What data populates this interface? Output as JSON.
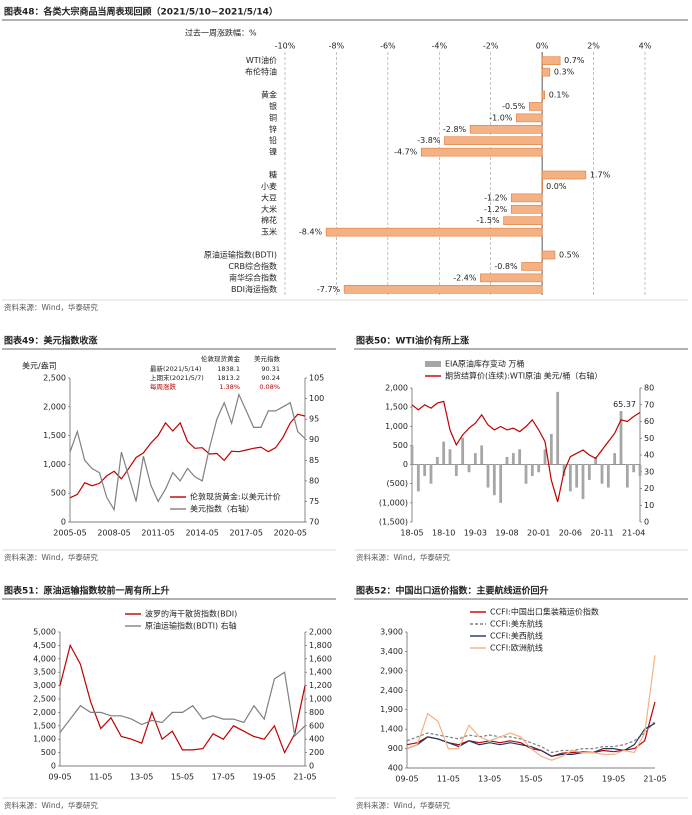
{
  "chart_data": [
    {
      "type": "hbar",
      "title": "图表48：各类大宗商品当周表现回顾（2021/5/10~2021/5/14）",
      "subtitle": "过去一周涨跌幅：%",
      "categories": [
        "WTI油价",
        "布伦特油",
        null,
        "黄金",
        "银",
        "铜",
        "锌",
        "铅",
        "镍",
        null,
        "糖",
        "小麦",
        "大豆",
        "大米",
        "棉花",
        "玉米",
        null,
        "原油运输指数(BDTI)",
        "CRB综合指数",
        "南华综合指数",
        "BDI海运指数"
      ],
      "values": [
        0.7,
        0.3,
        null,
        0.1,
        -0.5,
        -1.0,
        -2.8,
        -3.8,
        -4.7,
        null,
        1.7,
        0.0,
        -1.2,
        -1.2,
        -1.5,
        -8.4,
        null,
        0.5,
        -0.8,
        -2.4,
        -7.7
      ],
      "value_labels": [
        "0.7%",
        "0.3%",
        null,
        "0.1%",
        "-0.5%",
        "-1.0%",
        "-2.8%",
        "-3.8%",
        "-4.7%",
        null,
        "1.7%",
        "0.0%",
        "-1.2%",
        "-1.2%",
        "-1.5%",
        "-8.4%",
        null,
        "0.5%",
        "-0.8%",
        "-2.4%",
        "-7.7%"
      ],
      "color": "#f4b183",
      "xlim": [
        -10,
        4
      ],
      "xticks": [
        {
          "value": -10,
          "label": "-10%"
        },
        {
          "value": -8,
          "label": "-8%"
        },
        {
          "value": -6,
          "label": "-6%"
        },
        {
          "value": -4,
          "label": "-4%"
        },
        {
          "value": -2,
          "label": "-2%"
        },
        {
          "value": 0,
          "label": "0%"
        },
        {
          "value": 2,
          "label": "2%"
        },
        {
          "value": 4,
          "label": "4%"
        }
      ],
      "grid": true,
      "source": "资料来源：Wind，华泰研究"
    },
    {
      "type": "line",
      "title": "图表49：美元指数收涨",
      "y_label": "美元/盎司",
      "x": [
        "2005-05",
        "2005-11",
        "2006-05",
        "2006-11",
        "2007-05",
        "2007-11",
        "2008-05",
        "2008-11",
        "2009-05",
        "2009-11",
        "2010-05",
        "2010-11",
        "2011-05",
        "2011-11",
        "2012-05",
        "2012-11",
        "2013-05",
        "2013-11",
        "2014-05",
        "2014-11",
        "2015-05",
        "2015-11",
        "2016-05",
        "2016-11",
        "2017-05",
        "2017-11",
        "2018-05",
        "2018-11",
        "2019-05",
        "2019-11",
        "2020-05",
        "2020-11",
        "2021-05"
      ],
      "series": [
        {
          "name": "伦敦现货黄金:以美元计价",
          "color": "#c00000",
          "values": [
            420,
            480,
            680,
            630,
            670,
            800,
            880,
            750,
            930,
            1120,
            1200,
            1370,
            1500,
            1720,
            1580,
            1720,
            1400,
            1280,
            1290,
            1180,
            1190,
            1070,
            1230,
            1220,
            1250,
            1280,
            1300,
            1220,
            1290,
            1470,
            1720,
            1870,
            1838
          ]
        },
        {
          "name": "美元指数（右轴）",
          "color": "#808080",
          "axis": "y2",
          "values": [
            87,
            92,
            85,
            83,
            82,
            76,
            73,
            87,
            81,
            75,
            86,
            79,
            75,
            78,
            82,
            80,
            83,
            81,
            80,
            88,
            95,
            99,
            94,
            101,
            97,
            93,
            93,
            97,
            97,
            98,
            99,
            92,
            90.3
          ]
        }
      ],
      "ylim": [
        0,
        2500
      ],
      "yticks": [
        0,
        500,
        {
          "value": 1000,
          "label": "1,000"
        },
        {
          "value": 1500,
          "label": "1,500"
        },
        {
          "value": 2000,
          "label": "2,000"
        },
        {
          "value": 2500,
          "label": "2,500"
        }
      ],
      "y2lim": [
        70,
        105
      ],
      "y2ticks": [
        70,
        75,
        80,
        85,
        90,
        95,
        100,
        105
      ],
      "xticks": [
        "2005-05",
        "2008-05",
        "2011-05",
        "2014-05",
        "2017-05",
        "2020-05"
      ],
      "legend": "lower right",
      "annotation_table": {
        "header": [
          "伦敦现货黄金",
          "美元指数"
        ],
        "rows": [
          [
            "最新(2021/5/14)",
            "1838.1",
            "90.31"
          ],
          [
            "上期末(2021/5/7)",
            "1813.2",
            "90.24"
          ],
          [
            "每周涨跌",
            "1.38%",
            "0.08%"
          ]
        ]
      },
      "source": "资料来源：Wind，华泰研究"
    },
    {
      "type": "combo",
      "title": "图表50：WTI油价有所上涨",
      "x": [
        "18-05",
        "18-06",
        "18-07",
        "18-08",
        "18-09",
        "18-10",
        "18-11",
        "18-12",
        "19-01",
        "19-02",
        "19-03",
        "19-04",
        "19-05",
        "19-06",
        "19-07",
        "19-08",
        "19-09",
        "19-10",
        "19-11",
        "19-12",
        "20-01",
        "20-02",
        "20-03",
        "20-04",
        "20-05",
        "20-06",
        "20-07",
        "20-08",
        "20-09",
        "20-10",
        "20-11",
        "20-12",
        "21-01",
        "21-02",
        "21-03",
        "21-04",
        "21-05"
      ],
      "series": [
        {
          "name": "EIA原油库存变动 万桶",
          "kind": "bar",
          "color": "#a6a6a6",
          "values": [
            500,
            -700,
            -300,
            -500,
            200,
            600,
            400,
            -300,
            700,
            -200,
            300,
            500,
            -600,
            -800,
            -1000,
            200,
            300,
            400,
            -500,
            -300,
            -200,
            400,
            800,
            1900,
            -300,
            -700,
            -600,
            -900,
            -400,
            200,
            -500,
            -600,
            300,
            1400,
            -600,
            -200,
            -300
          ]
        },
        {
          "name": "期货结算价(连续):WTI原油 美元/桶（右轴）",
          "kind": "line",
          "color": "#c00000",
          "axis": "y2",
          "values": [
            70,
            67,
            70,
            68,
            71,
            72,
            55,
            46,
            52,
            56,
            59,
            64,
            58,
            55,
            57,
            55,
            56,
            54,
            57,
            61,
            55,
            48,
            25,
            12,
            30,
            39,
            41,
            43,
            40,
            38,
            43,
            48,
            53,
            61,
            60,
            63,
            65.37
          ]
        }
      ],
      "ylim": [
        -1500,
        2000
      ],
      "yticks": [
        {
          "value": -1500,
          "label": "(1,500)"
        },
        {
          "value": -1000,
          "label": "(1,000)"
        },
        {
          "value": -500,
          "label": "(500)"
        },
        0,
        500,
        {
          "value": 1000,
          "label": "1,000"
        },
        {
          "value": 1500,
          "label": "1,500"
        },
        {
          "value": 2000,
          "label": "2,000"
        }
      ],
      "y2lim": [
        0,
        80
      ],
      "y2ticks": [
        0,
        10,
        20,
        30,
        40,
        50,
        60,
        70,
        80
      ],
      "xticks": [
        "18-05",
        "18-10",
        "19-03",
        "19-08",
        "20-01",
        "20-06",
        "20-11",
        "21-04"
      ],
      "legend": "top left",
      "annotation": "65.37",
      "source": "资料来源：Wind，华泰研究"
    },
    {
      "type": "line",
      "title": "图表51：原油运输指数较前一周有所上升",
      "x": [
        "09-05",
        "09-11",
        "10-05",
        "10-11",
        "11-05",
        "11-11",
        "12-05",
        "12-11",
        "13-05",
        "13-11",
        "14-05",
        "14-11",
        "15-05",
        "15-11",
        "16-05",
        "16-11",
        "17-05",
        "17-11",
        "18-05",
        "18-11",
        "19-05",
        "19-11",
        "20-05",
        "20-11",
        "21-05"
      ],
      "series": [
        {
          "name": "波罗的海干散货指数(BDI)",
          "color": "#c00000",
          "values": [
            3000,
            4500,
            3800,
            2400,
            1400,
            1800,
            1100,
            1000,
            850,
            2000,
            1000,
            1300,
            600,
            600,
            650,
            1200,
            1000,
            1500,
            1300,
            1100,
            1000,
            1500,
            500,
            1200,
            3000
          ]
        },
        {
          "name": "原油运输指数(BDTI) 右轴",
          "color": "#7f7f7f",
          "axis": "y2",
          "values": [
            500,
            700,
            900,
            800,
            800,
            750,
            750,
            700,
            620,
            680,
            650,
            800,
            800,
            900,
            700,
            750,
            700,
            700,
            650,
            900,
            700,
            1300,
            1400,
            450,
            600
          ]
        }
      ],
      "ylim": [
        0,
        5000
      ],
      "yticks": [
        0,
        500,
        {
          "value": 1000,
          "label": "1,000"
        },
        {
          "value": 1500,
          "label": "1,500"
        },
        {
          "value": 2000,
          "label": "2,000"
        },
        {
          "value": 2500,
          "label": "2,500"
        },
        {
          "value": 3000,
          "label": "3,000"
        },
        {
          "value": 3500,
          "label": "3,500"
        },
        {
          "value": 4000,
          "label": "4,000"
        },
        {
          "value": 4500,
          "label": "4,500"
        },
        {
          "value": 5000,
          "label": "5,000"
        }
      ],
      "y2lim": [
        0,
        2000
      ],
      "y2ticks": [
        0,
        200,
        400,
        600,
        800,
        {
          "value": 1000,
          "label": "1,000"
        },
        {
          "value": 1200,
          "label": "1,200"
        },
        {
          "value": 1400,
          "label": "1,400"
        },
        {
          "value": 1600,
          "label": "1,600"
        },
        {
          "value": 1800,
          "label": "1,800"
        },
        {
          "value": 2000,
          "label": "2,000"
        }
      ],
      "xticks": [
        "09-05",
        "11-05",
        "13-05",
        "15-05",
        "17-05",
        "19-05",
        "21-05"
      ],
      "legend": "top",
      "source": "资料来源：Wind，华泰研究"
    },
    {
      "type": "line",
      "title": "图表52：中国出口运价指数：主要航线运价回升",
      "x": [
        "09-05",
        "09-11",
        "10-05",
        "10-11",
        "11-05",
        "11-11",
        "12-05",
        "12-11",
        "13-05",
        "13-11",
        "14-05",
        "14-11",
        "15-05",
        "15-11",
        "16-05",
        "16-11",
        "17-05",
        "17-11",
        "18-05",
        "18-11",
        "19-05",
        "19-11",
        "20-05",
        "20-11",
        "21-05"
      ],
      "series": [
        {
          "name": "CCFI:中国出口集装箱运价指数",
          "color": "#c00000",
          "values": [
            1000,
            1050,
            1200,
            1150,
            1050,
            1000,
            1100,
            1050,
            1100,
            1050,
            1100,
            1050,
            900,
            850,
            700,
            780,
            800,
            820,
            800,
            850,
            820,
            860,
            900,
            1100,
            2100
          ]
        },
        {
          "name": "CCFI:美东航线",
          "color": "#7f7f7f",
          "dash": true,
          "values": [
            1100,
            1200,
            1300,
            1250,
            1200,
            1150,
            1250,
            1200,
            1250,
            1200,
            1200,
            1150,
            1050,
            950,
            800,
            850,
            850,
            900,
            900,
            950,
            950,
            1000,
            1100,
            1300,
            1600
          ]
        },
        {
          "name": "CCFI:美西航线",
          "color": "#1f3864",
          "values": [
            900,
            1000,
            1200,
            1150,
            1050,
            950,
            1100,
            1000,
            1050,
            1000,
            1050,
            1000,
            950,
            850,
            700,
            750,
            750,
            800,
            800,
            900,
            900,
            850,
            1000,
            1400,
            1550
          ]
        },
        {
          "name": "CCFI:欧洲航线",
          "color": "#f4b183",
          "values": [
            900,
            1000,
            1800,
            1600,
            900,
            900,
            1500,
            1200,
            1100,
            1200,
            1300,
            1200,
            900,
            700,
            600,
            700,
            850,
            800,
            800,
            750,
            750,
            850,
            800,
            1300,
            3300
          ]
        }
      ],
      "ylim": [
        400,
        3900
      ],
      "yticks": [
        400,
        900,
        {
          "value": 1400,
          "label": "1,400"
        },
        {
          "value": 1900,
          "label": "1,900"
        },
        {
          "value": 2400,
          "label": "2,400"
        },
        {
          "value": 2900,
          "label": "2,900"
        },
        {
          "value": 3400,
          "label": "3,400"
        },
        {
          "value": 3900,
          "label": "3,900"
        }
      ],
      "xticks": [
        "09-05",
        "11-05",
        "13-05",
        "15-05",
        "17-05",
        "19-05",
        "21-05"
      ],
      "legend": "top left",
      "source": "资料来源：Wind，华泰研究"
    }
  ]
}
